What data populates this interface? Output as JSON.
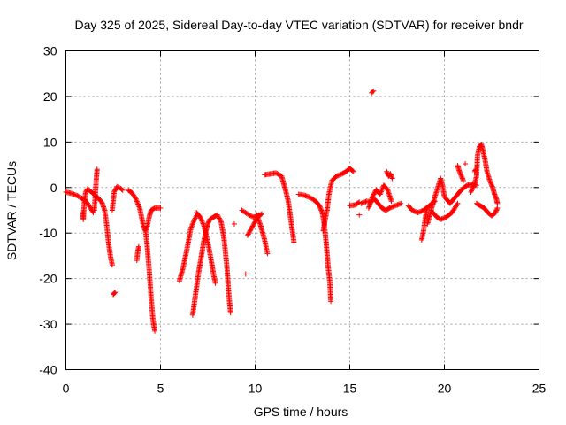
{
  "chart_data": {
    "type": "scatter",
    "title": "Day 325 of 2025, Sidereal Day-to-day VTEC variation (SDTVAR) for receiver bndr",
    "xlabel": "GPS time / hours",
    "ylabel": "SDTVAR / TECUs",
    "xlim": [
      0,
      25
    ],
    "ylim": [
      -40,
      30
    ],
    "xticks": [
      0,
      5,
      10,
      15,
      20,
      25
    ],
    "yticks": [
      -40,
      -30,
      -20,
      -10,
      0,
      10,
      20,
      30
    ],
    "xtick_labels": [
      "0",
      "5",
      "10",
      "15",
      "20",
      "25"
    ],
    "ytick_labels": [
      "-40",
      "-30",
      "-20",
      "-10",
      "0",
      "10",
      "20",
      "30"
    ],
    "grid": true,
    "marker": "+",
    "color": "#ff0000",
    "series": [
      {
        "name": "bndr",
        "segments": [
          [
            [
              0.0,
              -1.0
            ],
            [
              0.3,
              -1.3
            ],
            [
              0.6,
              -1.8
            ],
            [
              0.9,
              -2.5
            ],
            [
              1.1,
              -3.2
            ],
            [
              1.3,
              -4.5
            ],
            [
              1.45,
              -5.5
            ]
          ],
          [
            [
              0.9,
              -5.5
            ],
            [
              0.92,
              -7.0
            ],
            [
              0.97,
              -3.5
            ],
            [
              1.05,
              -1.0
            ],
            [
              1.15,
              -0.3
            ]
          ],
          [
            [
              1.2,
              -0.5
            ],
            [
              1.35,
              -1.0
            ],
            [
              1.5,
              -1.5
            ],
            [
              1.6,
              -2.0
            ],
            [
              1.7,
              -2.3
            ]
          ],
          [
            [
              1.5,
              -5.0
            ],
            [
              1.55,
              -2.0
            ],
            [
              1.6,
              1.5
            ],
            [
              1.65,
              4.0
            ]
          ],
          [
            [
              1.7,
              -2.3
            ],
            [
              1.9,
              -3.2
            ],
            [
              2.05,
              -5.0
            ],
            [
              2.15,
              -8.0
            ],
            [
              2.25,
              -12.0
            ],
            [
              2.35,
              -15.0
            ],
            [
              2.45,
              -17.0
            ]
          ],
          [
            [
              2.45,
              -5.0
            ],
            [
              2.55,
              -1.0
            ],
            [
              2.7,
              0.2
            ],
            [
              2.9,
              -0.2
            ],
            [
              3.0,
              -0.6
            ]
          ],
          [
            [
              2.5,
              -23.5
            ],
            [
              2.6,
              -23.0
            ]
          ],
          [
            [
              3.3,
              -0.6
            ],
            [
              3.5,
              -1.2
            ],
            [
              3.7,
              -2.5
            ],
            [
              3.9,
              -4.5
            ],
            [
              4.0,
              -6.5
            ],
            [
              4.1,
              -8.5
            ],
            [
              4.2,
              -9.5
            ],
            [
              4.3,
              -8.5
            ],
            [
              4.4,
              -6.5
            ],
            [
              4.5,
              -5.0
            ],
            [
              4.7,
              -4.5
            ],
            [
              5.0,
              -4.5
            ]
          ],
          [
            [
              3.75,
              -16.0
            ],
            [
              3.8,
              -14.0
            ],
            [
              3.85,
              -13.0
            ]
          ],
          [
            [
              4.2,
              -9.0
            ],
            [
              4.3,
              -13.0
            ],
            [
              4.4,
              -18.0
            ],
            [
              4.5,
              -24.0
            ],
            [
              4.6,
              -29.0
            ],
            [
              4.7,
              -31.5
            ]
          ],
          [
            [
              6.0,
              -20.5
            ],
            [
              6.2,
              -17.5
            ],
            [
              6.4,
              -13.5
            ],
            [
              6.6,
              -9.0
            ],
            [
              6.8,
              -7.0
            ],
            [
              6.9,
              -6.2
            ]
          ],
          [
            [
              6.9,
              -5.5
            ],
            [
              7.1,
              -6.5
            ],
            [
              7.3,
              -8.5
            ],
            [
              7.5,
              -12.0
            ],
            [
              7.7,
              -16.5
            ],
            [
              7.8,
              -19.0
            ],
            [
              7.9,
              -21.0
            ]
          ],
          [
            [
              6.7,
              -28.0
            ],
            [
              6.8,
              -25.0
            ],
            [
              6.9,
              -22.0
            ],
            [
              7.0,
              -19.0
            ],
            [
              7.1,
              -16.5
            ],
            [
              7.2,
              -14.0
            ],
            [
              7.3,
              -11.5
            ],
            [
              7.4,
              -9.5
            ],
            [
              7.5,
              -8.0
            ],
            [
              7.6,
              -7.0
            ],
            [
              7.8,
              -6.5
            ],
            [
              8.0,
              -6.0
            ],
            [
              8.2,
              -7.5
            ],
            [
              8.35,
              -11.0
            ],
            [
              8.5,
              -17.0
            ],
            [
              8.6,
              -23.0
            ],
            [
              8.7,
              -27.5
            ]
          ],
          [
            [
              8.9,
              -8.0
            ]
          ],
          [
            [
              9.3,
              -5.0
            ],
            [
              9.6,
              -5.8
            ],
            [
              9.9,
              -6.5
            ],
            [
              10.2,
              -6.2
            ],
            [
              10.35,
              -5.8
            ]
          ],
          [
            [
              9.6,
              -10.5
            ],
            [
              9.8,
              -9.0
            ],
            [
              10.0,
              -7.5
            ],
            [
              10.2,
              -6.0
            ]
          ],
          [
            [
              10.1,
              -6.0
            ],
            [
              10.3,
              -8.5
            ],
            [
              10.5,
              -11.5
            ],
            [
              10.65,
              -14.5
            ]
          ],
          [
            [
              9.5,
              -19.0
            ]
          ],
          [
            [
              10.5,
              2.8
            ],
            [
              10.8,
              3.0
            ],
            [
              11.1,
              3.2
            ],
            [
              11.4,
              2.5
            ],
            [
              11.6,
              -0.5
            ],
            [
              11.75,
              -3.0
            ],
            [
              11.85,
              -6.0
            ],
            [
              11.95,
              -9.0
            ],
            [
              12.05,
              -12.0
            ]
          ],
          [
            [
              12.3,
              -1.5
            ],
            [
              12.6,
              -1.7
            ],
            [
              12.9,
              -2.2
            ],
            [
              13.2,
              -3.0
            ],
            [
              13.4,
              -4.0
            ],
            [
              13.55,
              -5.5
            ],
            [
              13.65,
              -8.0
            ],
            [
              13.75,
              -12.0
            ],
            [
              13.85,
              -17.0
            ],
            [
              13.95,
              -21.0
            ],
            [
              14.0,
              -25.0
            ]
          ],
          [
            [
              13.6,
              -9.5
            ],
            [
              13.7,
              -7.0
            ],
            [
              13.8,
              -5.0
            ],
            [
              13.9,
              -1.5
            ],
            [
              14.05,
              1.5
            ],
            [
              14.3,
              2.5
            ],
            [
              14.6,
              3.0
            ],
            [
              14.8,
              3.5
            ],
            [
              15.0,
              4.2
            ],
            [
              15.2,
              3.5
            ]
          ],
          [
            [
              15.0,
              -4.0
            ],
            [
              15.3,
              -3.8
            ],
            [
              15.5,
              -3.2
            ]
          ],
          [
            [
              15.5,
              -6.0
            ]
          ],
          [
            [
              15.6,
              -3.5
            ],
            [
              15.9,
              -3.0
            ],
            [
              16.1,
              -3.2
            ],
            [
              16.3,
              -2.5
            ],
            [
              16.5,
              -3.5
            ],
            [
              16.7,
              -4.5
            ],
            [
              16.9,
              -5.0
            ],
            [
              17.1,
              -4.5
            ],
            [
              17.4,
              -4.0
            ],
            [
              17.7,
              -3.5
            ]
          ],
          [
            [
              16.0,
              -4.5
            ],
            [
              16.2,
              -2.0
            ],
            [
              16.4,
              -0.5
            ],
            [
              16.6,
              -1.5
            ],
            [
              16.8,
              0.5
            ],
            [
              17.0,
              -0.5
            ],
            [
              17.2,
              -3.0
            ]
          ],
          [
            [
              16.15,
              20.8
            ],
            [
              16.25,
              21.2
            ]
          ],
          [
            [
              16.95,
              3.5
            ],
            [
              17.05,
              2.5
            ],
            [
              17.15,
              3.0
            ],
            [
              17.25,
              2.0
            ]
          ],
          [
            [
              18.1,
              -4.0
            ],
            [
              18.3,
              -5.0
            ],
            [
              18.6,
              -5.5
            ],
            [
              18.9,
              -5.0
            ],
            [
              19.2,
              -4.0
            ],
            [
              19.5,
              -3.0
            ]
          ],
          [
            [
              18.8,
              -11.5
            ],
            [
              18.9,
              -9.5
            ],
            [
              19.0,
              -6.5
            ],
            [
              19.1,
              -4.5
            ]
          ],
          [
            [
              19.1,
              -8.0
            ],
            [
              19.3,
              -5.0
            ],
            [
              19.5,
              -2.0
            ],
            [
              19.65,
              0.0
            ],
            [
              19.8,
              2.0
            ],
            [
              19.9,
              0.5
            ],
            [
              20.0,
              -2.0
            ],
            [
              20.3,
              -3.5
            ],
            [
              20.6,
              -2.0
            ],
            [
              20.9,
              -0.5
            ],
            [
              21.2,
              0.5
            ],
            [
              21.5,
              0.8
            ],
            [
              21.7,
              0.5
            ]
          ],
          [
            [
              19.4,
              -5.5
            ],
            [
              19.6,
              -6.5
            ],
            [
              19.8,
              -7.0
            ],
            [
              20.1,
              -6.5
            ],
            [
              20.4,
              -5.5
            ],
            [
              20.7,
              -3.5
            ]
          ],
          [
            [
              20.7,
              4.8
            ],
            [
              20.8,
              3.5
            ],
            [
              20.9,
              2.5
            ],
            [
              21.0,
              1.5
            ]
          ],
          [
            [
              21.1,
              5.2
            ]
          ],
          [
            [
              21.4,
              -1.0
            ],
            [
              21.6,
              0.8
            ],
            [
              21.7,
              2.5
            ],
            [
              21.75,
              7.0
            ],
            [
              21.85,
              9.0
            ],
            [
              21.95,
              9.5
            ],
            [
              22.05,
              8.0
            ],
            [
              22.15,
              6.0
            ],
            [
              22.25,
              3.5
            ],
            [
              22.4,
              1.5
            ],
            [
              22.55,
              0.0
            ],
            [
              22.65,
              -1.5
            ],
            [
              22.75,
              -2.5
            ],
            [
              22.8,
              -3.5
            ]
          ],
          [
            [
              21.7,
              -3.5
            ],
            [
              21.9,
              -4.0
            ],
            [
              22.1,
              -4.5
            ],
            [
              22.3,
              -5.5
            ],
            [
              22.5,
              -6.2
            ],
            [
              22.7,
              -5.5
            ],
            [
              22.8,
              -4.5
            ]
          ],
          [
            [
              21.6,
              3.5
            ],
            [
              21.65,
              4.0
            ]
          ]
        ]
      }
    ]
  }
}
